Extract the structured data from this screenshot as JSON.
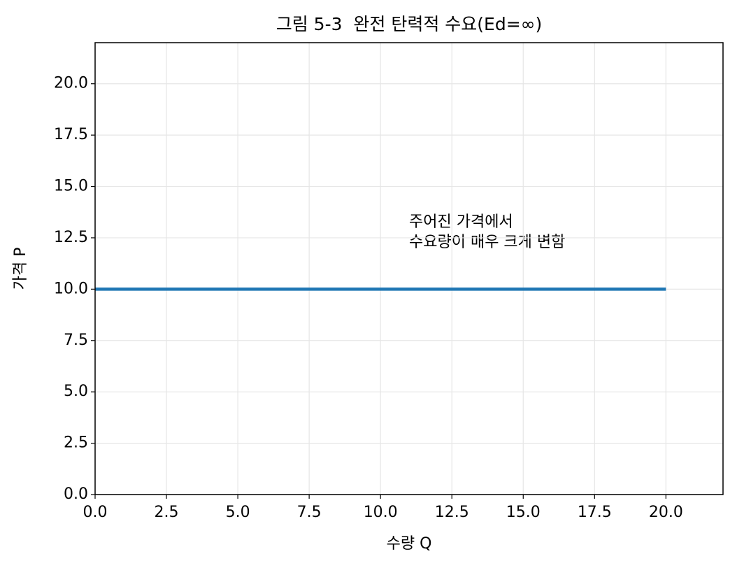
{
  "chart_data": {
    "type": "line",
    "title": "그림 5-3  완전 탄력적 수요(Ed=∞)",
    "xlabel": "수량 Q",
    "ylabel": "가격 P",
    "annotation": [
      "주어진 가격에서",
      "수요량이 매우 크게 변함"
    ],
    "x": [
      0,
      20
    ],
    "values": [
      10,
      10
    ],
    "color": "#1f77b4",
    "xlim": [
      0,
      22
    ],
    "ylim": [
      0,
      22
    ],
    "xticks": [
      {
        "value": 0,
        "label": "0.0"
      },
      2.5,
      {
        "value": 5,
        "label": "5.0"
      },
      7.5,
      {
        "value": 10,
        "label": "10.0"
      },
      12.5,
      {
        "value": 15,
        "label": "15.0"
      },
      17.5,
      {
        "value": 20,
        "label": "20.0"
      }
    ],
    "yticks": [
      {
        "value": 0,
        "label": "0.0"
      },
      2.5,
      {
        "value": 5,
        "label": "5.0"
      },
      7.5,
      {
        "value": 10,
        "label": "10.0"
      },
      12.5,
      {
        "value": 15,
        "label": "15.0"
      },
      17.5,
      {
        "value": 20,
        "label": "20.0"
      }
    ],
    "grid": true
  }
}
